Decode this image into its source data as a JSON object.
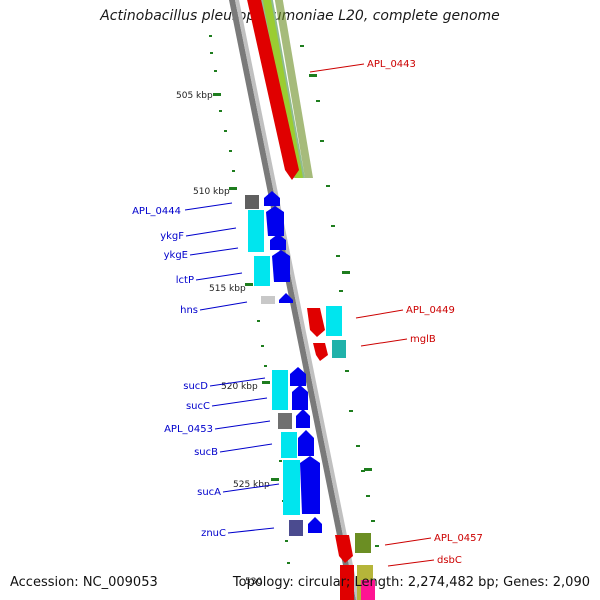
{
  "header": {
    "title": "Actinobacillus pleuropneumoniae L20, complete genome"
  },
  "footer": {
    "accession": "Accession: NC_009053",
    "summary": "Topology: circular; Length: 2,274,482 bp; Genes: 2,090"
  },
  "ticks": [
    "505 kbp",
    "510 kbp",
    "515 kbp",
    "520 kbp",
    "525 kbp",
    "530"
  ],
  "genes_left": [
    "APL_0444",
    "ykgF",
    "ykgE",
    "lctP",
    "hns",
    "sucD",
    "sucC",
    "APL_0453",
    "sucB",
    "sucA",
    "znuC"
  ],
  "genes_right": [
    "APL_0443",
    "APL_0449",
    "mglB",
    "APL_0457",
    "dsbC"
  ],
  "colors": {
    "forward_label": "#0000cc",
    "reverse_label": "#cc0000",
    "backbone": "#808080",
    "forward_cds": "#0000ee",
    "reverse_cds": "#ee0000",
    "cog_cyan": "#00e5ee",
    "cog_green": "#9acd32",
    "tick_green": "#228b22"
  },
  "icons": {
    "cds_arrow": "block-arrow-icon",
    "tick_mark": "tick-dash-icon"
  }
}
